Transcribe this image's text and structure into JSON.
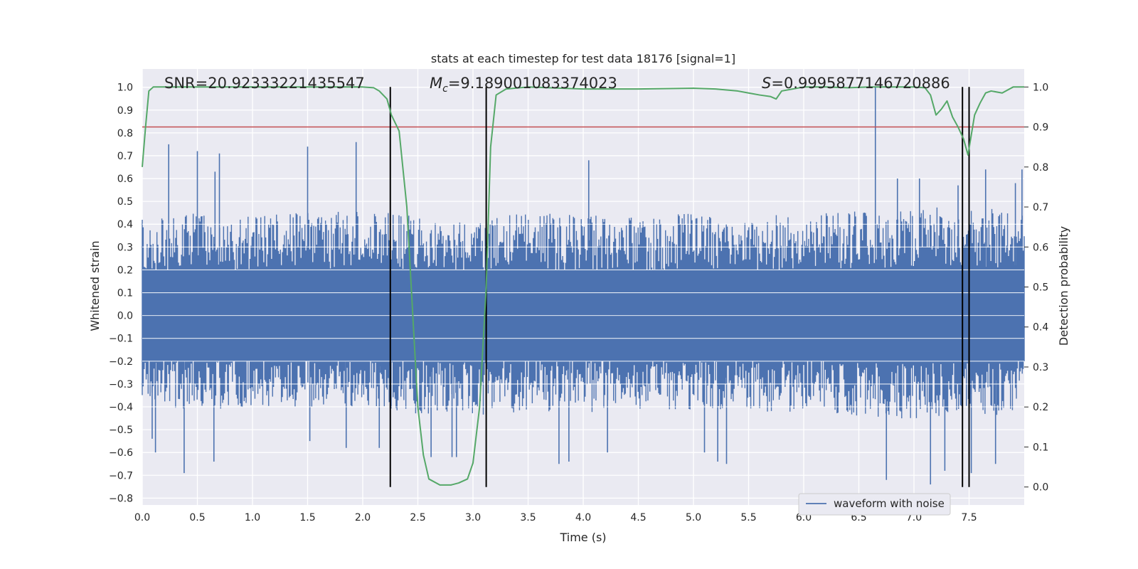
{
  "chart_data": {
    "type": "line",
    "title": "stats at each timestep for test data 18176 [signal=1]",
    "xlabel": "Time (s)",
    "ylabel_left": "Whitened strain",
    "ylabel_right": "Detection probability",
    "xlim": [
      0.0,
      8.0
    ],
    "ylim_left": [
      -0.83,
      1.08
    ],
    "ylim_right": [
      -0.045,
      1.045
    ],
    "grid": true,
    "x_ticks": [
      "0.0",
      "0.5",
      "1.0",
      "1.5",
      "2.0",
      "2.5",
      "3.0",
      "3.5",
      "4.0",
      "4.5",
      "5.0",
      "5.5",
      "6.0",
      "6.5",
      "7.0",
      "7.5"
    ],
    "y_ticks_left": [
      "−0.8",
      "−0.7",
      "−0.6",
      "−0.5",
      "−0.4",
      "−0.3",
      "−0.2",
      "−0.1",
      "0.0",
      "0.1",
      "0.2",
      "0.3",
      "0.4",
      "0.5",
      "0.6",
      "0.7",
      "0.8",
      "0.9",
      "1.0"
    ],
    "y_ticks_right": [
      "0.0",
      "0.1",
      "0.2",
      "0.3",
      "0.4",
      "0.5",
      "0.6",
      "0.7",
      "0.8",
      "0.9",
      "1.0"
    ],
    "annotations": {
      "snr_label": "SNR=20.92333221435547",
      "mc_symbol": "M",
      "mc_sub": "c",
      "mc_value": "=9.189001083374023",
      "s_symbol": "S",
      "s_value": "=0.9995877146720886"
    },
    "legend": {
      "placement": "lower-right",
      "entries": [
        "waveform with noise"
      ]
    },
    "colors": {
      "strain": "#4c72b0",
      "probability": "#55a868",
      "threshold": "#c44e52",
      "markers": "#000000",
      "background": "#eaeaf2",
      "grid": "#ffffff"
    },
    "threshold_right": 0.9,
    "vertical_markers": [
      2.25,
      3.12,
      7.44,
      7.5
    ],
    "strain_envelope": {
      "x": [
        0.0,
        0.5,
        1.0,
        1.5,
        2.0,
        2.5,
        3.0,
        3.5,
        4.0,
        4.5,
        5.0,
        5.5,
        6.0,
        6.5,
        7.0,
        7.5,
        8.0
      ],
      "upper": [
        0.42,
        0.45,
        0.44,
        0.45,
        0.46,
        0.44,
        0.42,
        0.45,
        0.44,
        0.43,
        0.45,
        0.44,
        0.44,
        0.46,
        0.47,
        0.48,
        0.45
      ],
      "lower": [
        -0.38,
        -0.42,
        -0.4,
        -0.4,
        -0.42,
        -0.43,
        -0.45,
        -0.42,
        -0.43,
        -0.41,
        -0.42,
        -0.42,
        -0.43,
        -0.44,
        -0.46,
        -0.46,
        -0.43
      ]
    },
    "strain_spikes": [
      {
        "x": 0.24,
        "y": 0.75
      },
      {
        "x": 0.38,
        "y": -0.69
      },
      {
        "x": 0.5,
        "y": 0.72
      },
      {
        "x": 0.66,
        "y": 0.63
      },
      {
        "x": 0.65,
        "y": -0.64
      },
      {
        "x": 0.7,
        "y": 0.71
      },
      {
        "x": 0.12,
        "y": -0.6
      },
      {
        "x": 0.09,
        "y": -0.54
      },
      {
        "x": 1.5,
        "y": 0.74
      },
      {
        "x": 1.52,
        "y": -0.55
      },
      {
        "x": 1.85,
        "y": -0.58
      },
      {
        "x": 1.94,
        "y": 0.76
      },
      {
        "x": 2.15,
        "y": -0.58
      },
      {
        "x": 2.62,
        "y": -0.62
      },
      {
        "x": 2.81,
        "y": -0.62
      },
      {
        "x": 2.85,
        "y": -0.62
      },
      {
        "x": 3.78,
        "y": -0.65
      },
      {
        "x": 3.87,
        "y": -0.64
      },
      {
        "x": 4.05,
        "y": 0.68
      },
      {
        "x": 4.22,
        "y": -0.6
      },
      {
        "x": 5.1,
        "y": -0.6
      },
      {
        "x": 5.22,
        "y": -0.64
      },
      {
        "x": 5.3,
        "y": -0.65
      },
      {
        "x": 6.65,
        "y": 1.0
      },
      {
        "x": 6.75,
        "y": -0.72
      },
      {
        "x": 6.85,
        "y": 0.6
      },
      {
        "x": 7.05,
        "y": 0.6
      },
      {
        "x": 7.15,
        "y": -0.74
      },
      {
        "x": 7.28,
        "y": -0.68
      },
      {
        "x": 7.4,
        "y": 0.57
      },
      {
        "x": 7.52,
        "y": -0.69
      },
      {
        "x": 7.65,
        "y": 0.64
      },
      {
        "x": 7.74,
        "y": -0.65
      },
      {
        "x": 7.92,
        "y": 0.58
      },
      {
        "x": 7.98,
        "y": 0.64
      }
    ],
    "series": [
      {
        "name": "Detection probability",
        "axis": "right",
        "x": [
          0.0,
          0.03,
          0.06,
          0.1,
          0.15,
          0.2,
          0.5,
          1.0,
          1.5,
          1.9,
          2.0,
          2.1,
          2.15,
          2.22,
          2.26,
          2.33,
          2.4,
          2.45,
          2.5,
          2.55,
          2.6,
          2.7,
          2.8,
          2.87,
          2.95,
          3.0,
          3.06,
          3.12,
          3.16,
          3.21,
          3.3,
          3.5,
          4.0,
          4.5,
          5.0,
          5.2,
          5.4,
          5.5,
          5.6,
          5.7,
          5.75,
          5.8,
          5.9,
          6.0,
          6.2,
          6.4,
          6.6,
          6.8,
          7.0,
          7.1,
          7.15,
          7.2,
          7.25,
          7.3,
          7.35,
          7.4,
          7.45,
          7.49,
          7.55,
          7.6,
          7.65,
          7.7,
          7.8,
          7.9,
          8.0
        ],
        "y": [
          0.8,
          0.9,
          0.99,
          1.0,
          1.0,
          1.0,
          1.0,
          1.0,
          1.0,
          1.0,
          1.0,
          0.998,
          0.99,
          0.97,
          0.93,
          0.89,
          0.7,
          0.45,
          0.2,
          0.08,
          0.02,
          0.005,
          0.005,
          0.01,
          0.02,
          0.06,
          0.2,
          0.5,
          0.85,
          0.98,
          0.995,
          1.0,
          0.995,
          0.995,
          0.997,
          0.995,
          0.99,
          0.985,
          0.98,
          0.976,
          0.97,
          0.99,
          0.995,
          1.0,
          1.0,
          0.998,
          1.0,
          1.0,
          1.0,
          0.998,
          0.98,
          0.93,
          0.945,
          0.965,
          0.925,
          0.9,
          0.87,
          0.83,
          0.93,
          0.96,
          0.985,
          0.99,
          0.985,
          1.0,
          1.0
        ]
      },
      {
        "name": "waveform with noise",
        "axis": "left",
        "representation": "dense noise band described by strain_envelope and strain_spikes"
      }
    ]
  }
}
